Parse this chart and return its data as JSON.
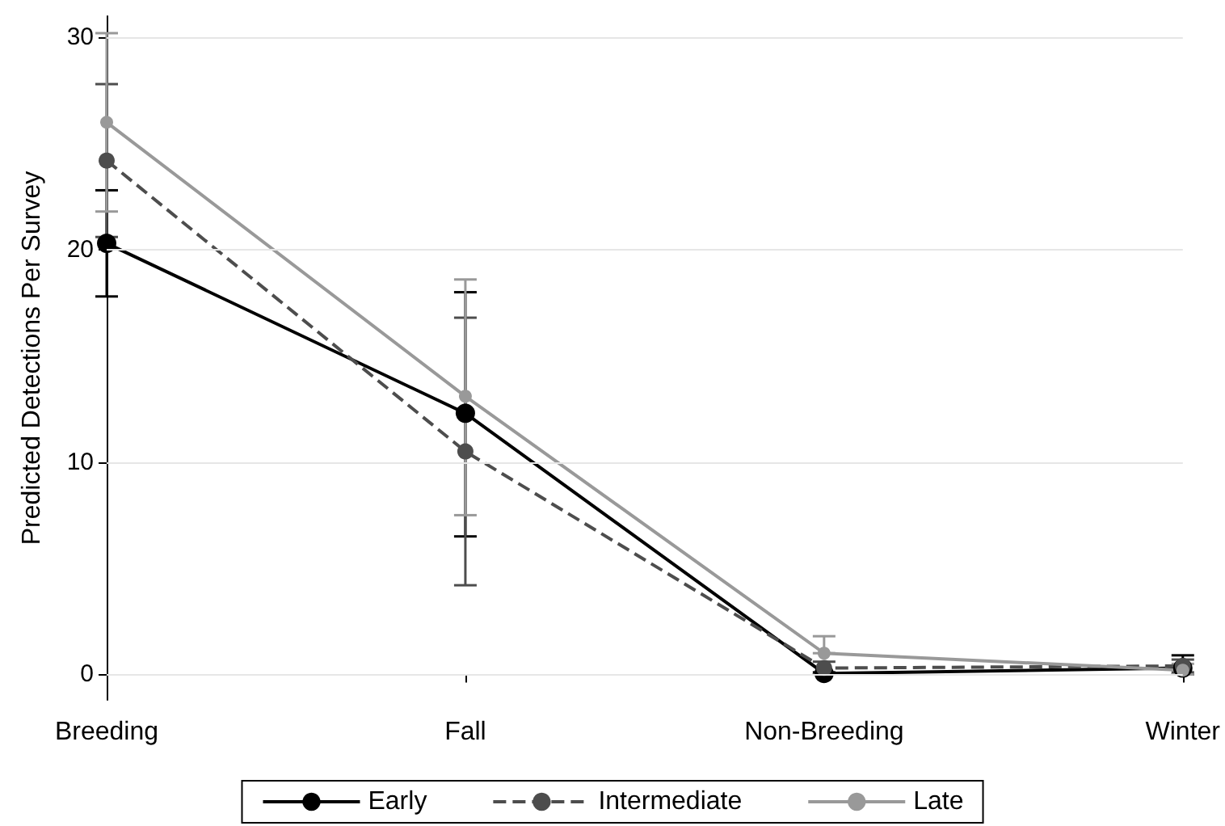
{
  "chart_data": {
    "type": "line",
    "ylabel": "Predicted Detections Per Survey",
    "categories": [
      "Breeding",
      "Fall",
      "Non-Breeding",
      "Winter"
    ],
    "series": [
      {
        "name": "Early",
        "color": "#000000",
        "line_style": "solid",
        "values": [
          20.3,
          12.3,
          0.05,
          0.3
        ],
        "errors": [
          [
            17.8,
            22.8
          ],
          [
            6.5,
            18.0
          ],
          [
            0,
            0.1
          ],
          [
            0,
            0.9
          ]
        ]
      },
      {
        "name": "Intermediate",
        "color": "#4d4d4d",
        "line_style": "dashed",
        "values": [
          24.2,
          10.5,
          0.3,
          0.4
        ],
        "errors": [
          [
            20.6,
            27.8
          ],
          [
            4.2,
            16.8
          ],
          [
            0,
            0.6
          ],
          [
            0.1,
            0.7
          ]
        ]
      },
      {
        "name": "Late",
        "color": "#999999",
        "line_style": "solid",
        "values": [
          26.0,
          13.1,
          1.0,
          0.2
        ],
        "errors": [
          [
            21.8,
            30.2
          ],
          [
            7.5,
            18.6
          ],
          [
            1.0,
            1.8
          ],
          [
            0,
            0.5
          ]
        ]
      }
    ],
    "ylim": [
      -1.2,
      31
    ],
    "yticks": [
      0,
      10,
      20,
      30
    ],
    "grid": "y",
    "legend": "bottom",
    "marker": "circle"
  }
}
